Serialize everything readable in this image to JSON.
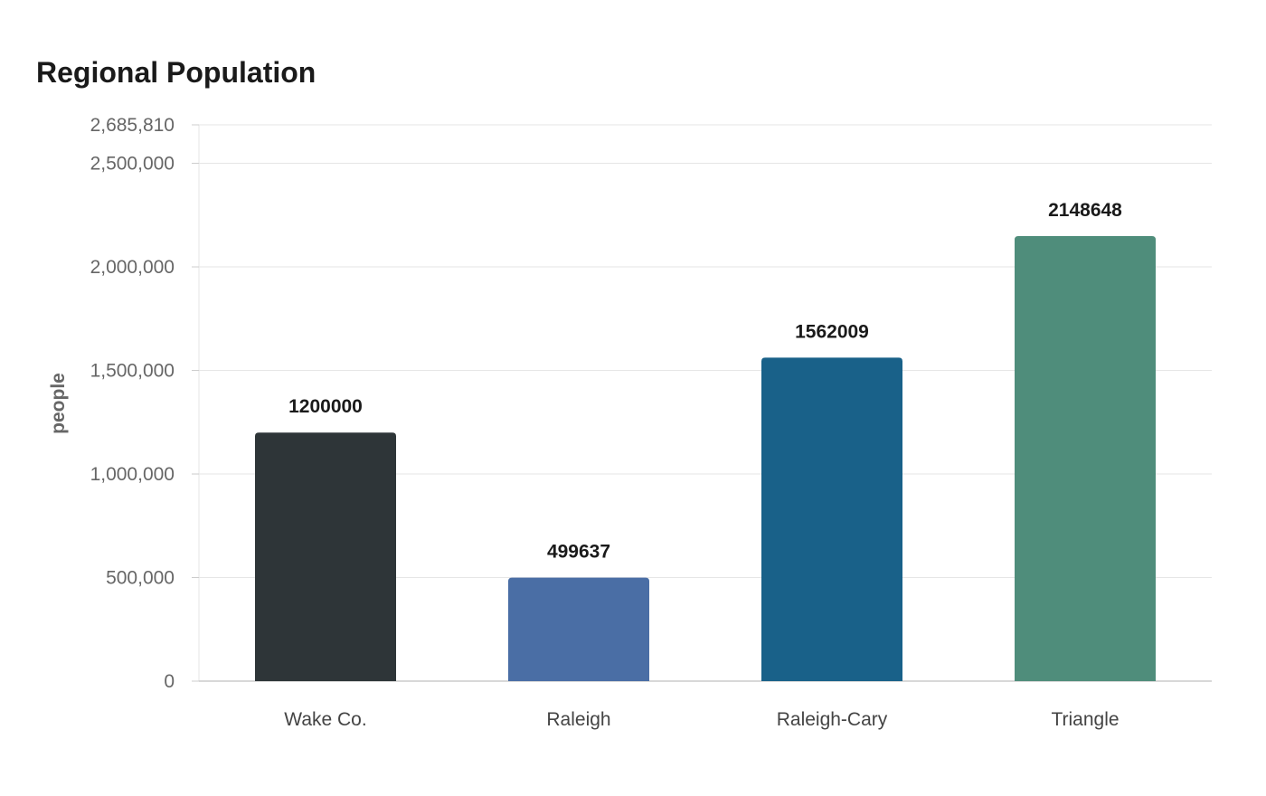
{
  "chart_data": {
    "type": "bar",
    "title": "Regional Population",
    "xlabel": "",
    "ylabel": "people",
    "categories": [
      "Wake Co.",
      "Raleigh",
      "Raleigh-Cary",
      "Triangle"
    ],
    "values": [
      1200000,
      499637,
      1562009,
      2148648
    ],
    "value_labels": [
      "1200000",
      "499637",
      "1562009",
      "2148648"
    ],
    "colors": [
      "#2e3538",
      "#4a6ea5",
      "#196189",
      "#4f8d7b"
    ],
    "ylim": [
      0,
      2685810
    ],
    "yticks": [
      0,
      500000,
      1000000,
      1500000,
      2000000,
      2500000,
      2685810
    ],
    "ytick_labels": [
      "0",
      "500,000",
      "1,000,000",
      "1,500,000",
      "2,000,000",
      "2,500,000",
      "2,685,810"
    ],
    "grid": true,
    "legend": "none"
  }
}
